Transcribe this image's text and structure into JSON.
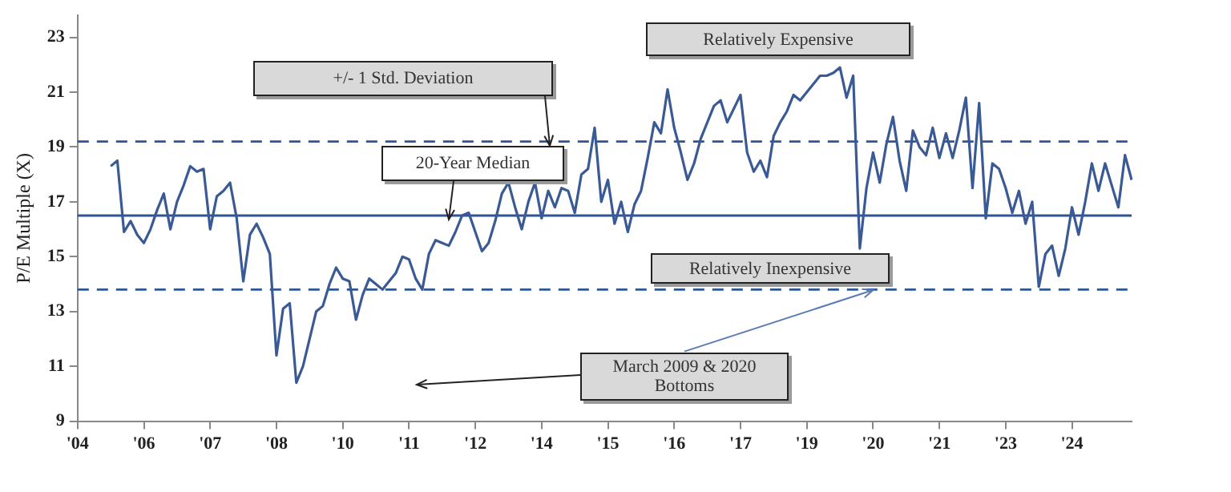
{
  "chart_data": {
    "type": "line",
    "ylabel": "P/E Multiple (X)",
    "categories": [
      "'04",
      null,
      null,
      null,
      null,
      null,
      null,
      null,
      null,
      null,
      "'06",
      null,
      null,
      null,
      null,
      null,
      null,
      null,
      null,
      null,
      "'07",
      null,
      null,
      null,
      null,
      null,
      null,
      null,
      null,
      null,
      "'08",
      null,
      null,
      null,
      null,
      null,
      null,
      null,
      null,
      null,
      "'10",
      null,
      null,
      null,
      null,
      null,
      null,
      null,
      null,
      null,
      "'11",
      null,
      null,
      null,
      null,
      null,
      null,
      null,
      null,
      null,
      "'12",
      null,
      null,
      null,
      null,
      null,
      null,
      null,
      null,
      null,
      "'14",
      null,
      null,
      null,
      null,
      null,
      null,
      null,
      null,
      null,
      "'15",
      null,
      null,
      null,
      null,
      null,
      null,
      null,
      null,
      null,
      "'16",
      null,
      null,
      null,
      null,
      null,
      null,
      null,
      null,
      null,
      "'17",
      null,
      null,
      null,
      null,
      null,
      null,
      null,
      null,
      null,
      "'19",
      null,
      null,
      null,
      null,
      null,
      null,
      null,
      null,
      null,
      "'20",
      null,
      null,
      null,
      null,
      null,
      null,
      null,
      null,
      null,
      "'21",
      null,
      null,
      null,
      null,
      null,
      null,
      null,
      null,
      null,
      "'23",
      null,
      null,
      null,
      null,
      null,
      null,
      null,
      null,
      null,
      "'24",
      null,
      null,
      null,
      null,
      null,
      null,
      null,
      null,
      null
    ],
    "ylim": [
      9,
      23.8
    ],
    "yticks": [
      9,
      11,
      13,
      15,
      17,
      19,
      21,
      23
    ],
    "series": [
      {
        "color": "#3a5a95",
        "values": [
          null,
          null,
          null,
          null,
          null,
          18.3,
          18.5,
          15.9,
          16.3,
          15.8,
          15.5,
          16.0,
          16.7,
          17.3,
          16.0,
          17.0,
          17.6,
          18.3,
          18.1,
          18.2,
          16.0,
          17.2,
          17.4,
          17.7,
          16.4,
          14.1,
          15.8,
          16.2,
          15.7,
          15.1,
          11.4,
          13.1,
          13.3,
          10.4,
          11.0,
          12.0,
          13.0,
          13.2,
          14.0,
          14.6,
          14.2,
          14.1,
          12.7,
          13.6,
          14.2,
          14.0,
          13.8,
          14.1,
          14.4,
          15.0,
          14.9,
          14.2,
          13.8,
          15.1,
          15.6,
          15.5,
          15.4,
          15.9,
          16.5,
          16.6,
          15.9,
          15.2,
          15.5,
          16.3,
          17.3,
          17.7,
          16.8,
          16.0,
          17.0,
          17.7,
          16.4,
          17.4,
          16.8,
          17.5,
          17.4,
          16.6,
          18.0,
          18.2,
          19.7,
          17.0,
          17.8,
          16.2,
          17.0,
          15.9,
          16.9,
          17.4,
          18.6,
          19.9,
          19.5,
          21.1,
          19.7,
          18.8,
          17.8,
          18.4,
          19.3,
          19.9,
          20.5,
          20.7,
          19.9,
          20.4,
          20.9,
          18.8,
          18.1,
          18.5,
          17.9,
          19.4,
          19.9,
          20.3,
          20.9,
          20.7,
          21.0,
          21.3,
          21.6,
          21.6,
          21.7,
          21.9,
          20.8,
          21.6,
          15.3,
          17.5,
          18.8,
          17.7,
          19.1,
          20.1,
          18.5,
          17.4,
          19.6,
          19.0,
          18.7,
          19.7,
          18.6,
          19.5,
          18.6,
          19.6,
          20.8,
          17.5,
          20.6,
          16.4,
          18.4,
          18.2,
          17.5,
          16.6,
          17.4,
          16.2,
          17.0,
          13.9,
          15.1,
          15.4,
          14.3,
          15.3,
          16.8,
          15.8,
          17.0,
          18.4,
          17.4,
          18.4,
          17.6,
          16.8,
          18.7,
          17.8
        ]
      }
    ],
    "ref_lines": [
      {
        "axis": "y",
        "value": 16.5,
        "color": "#2e5597",
        "line_style": "solid"
      },
      {
        "axis": "y",
        "value": 19.2,
        "color": "#2e5597",
        "line_style": "dashed"
      },
      {
        "axis": "y",
        "value": 13.8,
        "color": "#2e5597",
        "line_style": "dashed"
      }
    ],
    "annotations": [
      "+/- 1 Std. Deviation",
      "20-Year Median",
      "Relatively Expensive",
      "Relatively Inexpensive",
      {
        "text": "March 2009 & 2020 Bottoms",
        "x": "'20",
        "y": 13.8
      }
    ]
  }
}
